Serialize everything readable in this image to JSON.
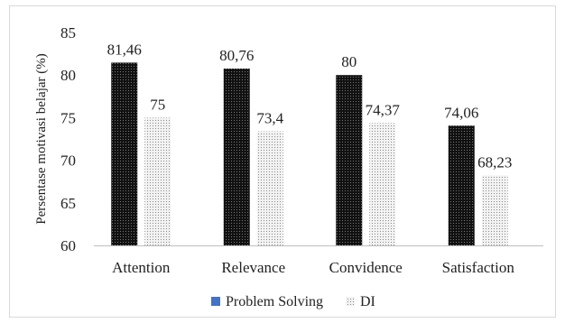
{
  "chart_data": {
    "type": "bar",
    "ylabel": "Persentase motivasi belajar (%)",
    "ylim": [
      60,
      85
    ],
    "yticks": [
      60,
      65,
      70,
      75,
      80,
      85
    ],
    "categories": [
      "Attention",
      "Relevance",
      "Convidence",
      "Satisfaction"
    ],
    "series": [
      {
        "name": "Problem Solving",
        "values": [
          81.46,
          80.76,
          80,
          74.06
        ],
        "labels": [
          "81,46",
          "80,76",
          "80",
          "74,06"
        ],
        "color": "#1f1f1f",
        "legend_color": "#4472c4"
      },
      {
        "name": "DI",
        "values": [
          75,
          73.4,
          74.37,
          68.23
        ],
        "labels": [
          "75",
          "73,4",
          "74,37",
          "68,23"
        ],
        "color": "#e6e6e6"
      }
    ],
    "legend_position": "bottom",
    "grid": false
  }
}
